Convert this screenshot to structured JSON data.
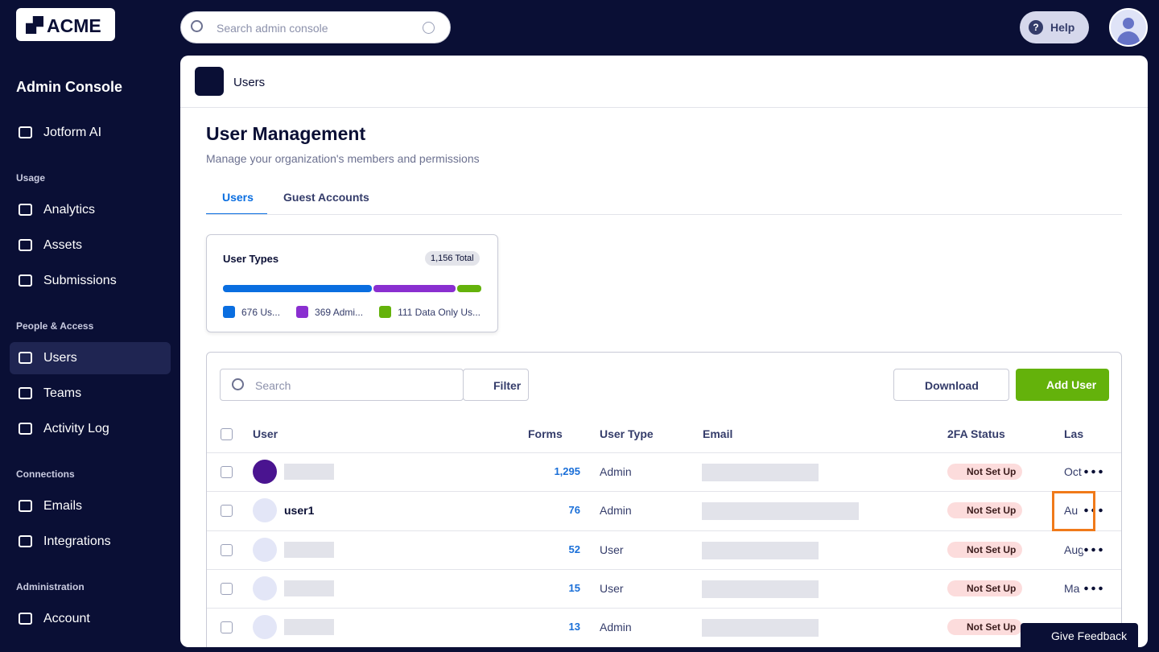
{
  "topbar": {
    "logo": "ACME",
    "search_placeholder": "Search admin console",
    "help": "Help"
  },
  "sidebar": {
    "title": "Admin Console",
    "items": [
      {
        "label": "Jotform AI"
      },
      {
        "section": "Usage"
      },
      {
        "label": "Analytics"
      },
      {
        "label": "Assets"
      },
      {
        "label": "Submissions"
      },
      {
        "section": "People & Access"
      },
      {
        "label": "Users",
        "active": true
      },
      {
        "label": "Teams"
      },
      {
        "label": "Activity Log"
      },
      {
        "section": "Connections"
      },
      {
        "label": "Emails"
      },
      {
        "label": "Integrations"
      },
      {
        "section": "Administration"
      },
      {
        "label": "Account"
      }
    ]
  },
  "header": {
    "title": "Users"
  },
  "page": {
    "title": "User Management",
    "subtitle": "Manage your organization's members and permissions",
    "tabs": [
      "Users",
      "Guest Accounts"
    ]
  },
  "user_types": {
    "title": "User Types",
    "total": "1,156 Total",
    "segments": [
      {
        "label": "676 Us...",
        "value": 676,
        "color": "#0a6ee0"
      },
      {
        "label": "369 Admi...",
        "value": 369,
        "color": "#8a2fd0"
      },
      {
        "label": "111 Data Only Us...",
        "value": 111,
        "color": "#64b20b"
      }
    ]
  },
  "table": {
    "search_placeholder": "Search",
    "filter": "Filter",
    "download": "Download",
    "add_user": "Add User",
    "columns": [
      "User",
      "Forms",
      "User Type",
      "Email",
      "2FA Status",
      "Las"
    ],
    "rows": [
      {
        "forms": "1,295",
        "type": "Admin",
        "twofa": "Not Set Up",
        "last": "Oct"
      },
      {
        "user": "user1",
        "forms": "76",
        "type": "Admin",
        "twofa": "Not Set Up",
        "last": "Au"
      },
      {
        "forms": "52",
        "type": "User",
        "twofa": "Not Set Up",
        "last": "Aug"
      },
      {
        "forms": "15",
        "type": "User",
        "twofa": "Not Set Up",
        "last": "Ma"
      },
      {
        "forms": "13",
        "type": "Admin",
        "twofa": "Not Set Up"
      }
    ]
  },
  "feedback": "Give Feedback"
}
